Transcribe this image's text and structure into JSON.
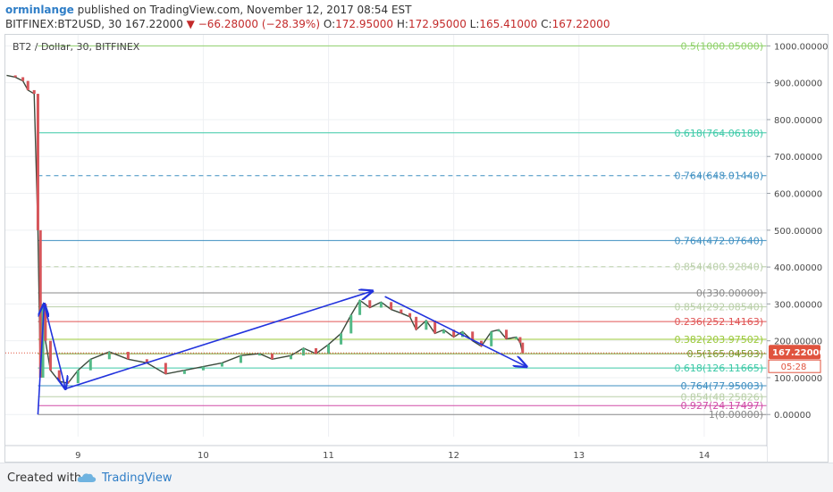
{
  "header": {
    "user": "orminlange",
    "published": "published on TradingView.com, November 12, 2017 08:54 EST",
    "symbol": "BITFINEX:BT2USD, 30",
    "last": "167.22000",
    "change": "▼ −66.28000 (−28.39%)",
    "o_label": "O:",
    "o": "172.95000",
    "h_label": "H:",
    "h": "172.95000",
    "l_label": "L:",
    "l": "165.41000",
    "c_label": "C:",
    "c": "167.22000"
  },
  "legend": "BT2 / Dollar, 30, BITFINEX",
  "footer": {
    "created": "Created with",
    "brand": "TradingView"
  },
  "chart_data": {
    "type": "candlestick",
    "ylim": [
      -60,
      1030
    ],
    "y_ticks": [
      {
        "value": 1000,
        "label": "1000.00000"
      },
      {
        "value": 900,
        "label": "900.00000"
      },
      {
        "value": 800,
        "label": "800.00000"
      },
      {
        "value": 700,
        "label": "700.00000"
      },
      {
        "value": 600,
        "label": "600.00000"
      },
      {
        "value": 500,
        "label": "500.00000"
      },
      {
        "value": 400,
        "label": "400.00000"
      },
      {
        "value": 300,
        "label": "300.00000"
      },
      {
        "value": 200,
        "label": "200.00000"
      },
      {
        "value": 100,
        "label": "100.00000"
      },
      {
        "value": 0,
        "label": "0.00000"
      }
    ],
    "x_ticks": [
      {
        "day": 9,
        "label": "9"
      },
      {
        "day": 10,
        "label": "10"
      },
      {
        "day": 11,
        "label": "11"
      },
      {
        "day": 12,
        "label": "12"
      },
      {
        "day": 13,
        "label": "13"
      },
      {
        "day": 14,
        "label": "14"
      }
    ],
    "xlim": [
      8.42,
      14.5
    ],
    "last_price": {
      "value": 167.22,
      "label": "167.22000",
      "countdown": "05:28",
      "color": "#e0533e"
    },
    "fib_levels": [
      {
        "value": 1000.0505,
        "label": "0.5(1000.05000)",
        "color": "#8fd16a",
        "dash": false
      },
      {
        "value": 764.0618,
        "label": "0.618(764.06180)",
        "color": "#3cc9a7",
        "dash": false
      },
      {
        "value": 648.0144,
        "label": "0.764(648.01440)",
        "color": "#3e8fc1",
        "dash": true
      },
      {
        "value": 472.0764,
        "label": "0.764(472.07640)",
        "color": "#3e8fc1",
        "dash": false
      },
      {
        "value": 400.9284,
        "label": "0.854(400.92840)",
        "color": "#b9cfa8",
        "dash": true
      },
      {
        "value": 330.0,
        "label": "0(330.00000)",
        "color": "#8a8a8a",
        "dash": false
      },
      {
        "value": 292.0854,
        "label": "0.854(292.08540)",
        "color": "#b9cfa8",
        "dash": false
      },
      {
        "value": 252.14163,
        "label": "0.236(252.14163)",
        "color": "#e05555",
        "dash": false
      },
      {
        "value": 203.97502,
        "label": "0.382(203.97502)",
        "color": "#9bc93a",
        "dash": false
      },
      {
        "value": 165.04503,
        "label": "0.5(165.04503)",
        "color": "#7a9a2e",
        "dash": false
      },
      {
        "value": 126.11665,
        "label": "0.618(126.11665)",
        "color": "#3cc9a7",
        "dash": false
      },
      {
        "value": 77.95003,
        "label": "0.764(77.95003)",
        "color": "#3e8fc1",
        "dash": false
      },
      {
        "value": 48.25826,
        "label": "0.854(48.25826)",
        "color": "#b9cfa8",
        "dash": false
      },
      {
        "value": 24.17497,
        "label": "0.927(24.17497)",
        "color": "#d04ca7",
        "dash": false
      },
      {
        "value": 0.0,
        "label": "1(0.00000)",
        "color": "#8a8a8a",
        "dash": false
      }
    ],
    "price_path": [
      {
        "x": 8.43,
        "y": 920
      },
      {
        "x": 8.5,
        "y": 915
      },
      {
        "x": 8.56,
        "y": 905
      },
      {
        "x": 8.6,
        "y": 880
      },
      {
        "x": 8.65,
        "y": 870
      },
      {
        "x": 8.68,
        "y": 500
      },
      {
        "x": 8.7,
        "y": 100
      },
      {
        "x": 8.72,
        "y": 300
      },
      {
        "x": 8.74,
        "y": 200
      },
      {
        "x": 8.78,
        "y": 120
      },
      {
        "x": 8.85,
        "y": 90
      },
      {
        "x": 8.92,
        "y": 85
      },
      {
        "x": 9.0,
        "y": 120
      },
      {
        "x": 9.1,
        "y": 150
      },
      {
        "x": 9.25,
        "y": 170
      },
      {
        "x": 9.4,
        "y": 150
      },
      {
        "x": 9.55,
        "y": 140
      },
      {
        "x": 9.7,
        "y": 110
      },
      {
        "x": 9.85,
        "y": 120
      },
      {
        "x": 10.0,
        "y": 130
      },
      {
        "x": 10.15,
        "y": 140
      },
      {
        "x": 10.3,
        "y": 160
      },
      {
        "x": 10.45,
        "y": 165
      },
      {
        "x": 10.55,
        "y": 150
      },
      {
        "x": 10.7,
        "y": 160
      },
      {
        "x": 10.8,
        "y": 180
      },
      {
        "x": 10.9,
        "y": 165
      },
      {
        "x": 11.0,
        "y": 190
      },
      {
        "x": 11.1,
        "y": 220
      },
      {
        "x": 11.18,
        "y": 270
      },
      {
        "x": 11.25,
        "y": 310
      },
      {
        "x": 11.33,
        "y": 290
      },
      {
        "x": 11.42,
        "y": 305
      },
      {
        "x": 11.5,
        "y": 285
      },
      {
        "x": 11.58,
        "y": 275
      },
      {
        "x": 11.65,
        "y": 265
      },
      {
        "x": 11.7,
        "y": 230
      },
      {
        "x": 11.78,
        "y": 255
      },
      {
        "x": 11.85,
        "y": 220
      },
      {
        "x": 11.92,
        "y": 230
      },
      {
        "x": 12.0,
        "y": 210
      },
      {
        "x": 12.07,
        "y": 225
      },
      {
        "x": 12.15,
        "y": 200
      },
      {
        "x": 12.22,
        "y": 185
      },
      {
        "x": 12.3,
        "y": 225
      },
      {
        "x": 12.36,
        "y": 230
      },
      {
        "x": 12.42,
        "y": 205
      },
      {
        "x": 12.5,
        "y": 210
      },
      {
        "x": 12.53,
        "y": 195
      },
      {
        "x": 12.55,
        "y": 167
      }
    ],
    "drawings": [
      {
        "from": {
          "x": 8.68,
          "y": 0
        },
        "to": {
          "x": 8.73,
          "y": 300
        },
        "color": "#2233dd"
      },
      {
        "from": {
          "x": 8.73,
          "y": 300
        },
        "to": {
          "x": 8.9,
          "y": 70
        },
        "color": "#2233dd"
      },
      {
        "from": {
          "x": 8.9,
          "y": 70
        },
        "to": {
          "x": 11.35,
          "y": 335
        },
        "color": "#2233dd"
      },
      {
        "from": {
          "x": 11.45,
          "y": 320
        },
        "to": {
          "x": 12.58,
          "y": 130
        },
        "color": "#2233dd"
      }
    ]
  }
}
